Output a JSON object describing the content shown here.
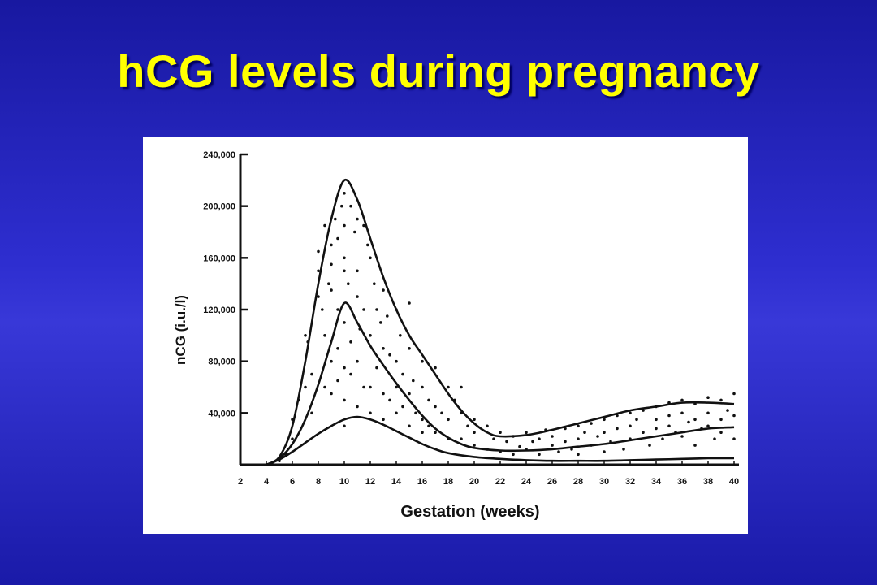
{
  "slide": {
    "title": "hCG levels during pregnancy",
    "colors": {
      "title": "#ffff00",
      "background": "#2a2ac8",
      "plot_background": "#ffffff",
      "ink": "#111111"
    }
  },
  "chart_data": {
    "type": "line",
    "title": "",
    "xlabel": "Gestation (weeks)",
    "ylabel": "nCG (i.u./l)",
    "xlim": [
      2,
      40
    ],
    "ylim": [
      0,
      240000
    ],
    "grid": false,
    "legend": "none",
    "x_ticks": [
      2,
      4,
      6,
      8,
      10,
      12,
      14,
      16,
      18,
      20,
      22,
      24,
      26,
      28,
      30,
      32,
      34,
      36,
      38,
      40
    ],
    "y_ticks": [
      40000,
      80000,
      120000,
      160000,
      200000,
      240000
    ],
    "y_tick_labels": [
      "40,000",
      "80,000",
      "120,000",
      "160,000",
      "200,000",
      "240,000"
    ],
    "series": [
      {
        "x": [
          4,
          5,
          6,
          7,
          8,
          9,
          10,
          11,
          12,
          13,
          14,
          15,
          16,
          17,
          18,
          19,
          20,
          21,
          22,
          24,
          26,
          28,
          30,
          32,
          34,
          36,
          38,
          40
        ],
        "values": [
          0,
          6000,
          30000,
          80000,
          140000,
          190000,
          220000,
          205000,
          175000,
          145000,
          120000,
          100000,
          85000,
          70000,
          55000,
          42000,
          32000,
          25000,
          22000,
          23000,
          27000,
          32000,
          37000,
          42000,
          45000,
          48000,
          48000,
          47000
        ]
      },
      {
        "x": [
          4,
          5,
          6,
          7,
          8,
          9,
          10,
          11,
          12,
          13,
          14,
          15,
          16,
          17,
          18,
          19,
          20,
          22,
          24,
          26,
          28,
          30,
          32,
          34,
          36,
          38,
          40
        ],
        "values": [
          0,
          5000,
          16000,
          35000,
          62000,
          95000,
          125000,
          110000,
          92000,
          77000,
          63000,
          50000,
          38000,
          28000,
          21000,
          16000,
          13000,
          11000,
          11000,
          12000,
          14000,
          16000,
          19000,
          22000,
          25000,
          28000,
          29000
        ]
      },
      {
        "x": [
          4,
          5,
          6,
          7,
          8,
          9,
          10,
          11,
          12,
          13,
          14,
          15,
          16,
          17,
          18,
          20,
          22,
          24,
          26,
          28,
          30,
          32,
          34,
          36,
          38,
          40
        ],
        "values": [
          0,
          4000,
          10000,
          17000,
          24000,
          30000,
          35000,
          37000,
          35000,
          31000,
          26000,
          21000,
          16000,
          12000,
          9000,
          6000,
          4500,
          3500,
          3000,
          3000,
          3000,
          3500,
          4000,
          4500,
          5000,
          5000
        ]
      }
    ],
    "scatter_points": [
      [
        5,
        3000
      ],
      [
        5.5,
        8000
      ],
      [
        6,
        20000
      ],
      [
        6,
        35000
      ],
      [
        6.5,
        50000
      ],
      [
        7,
        60000
      ],
      [
        7,
        100000
      ],
      [
        7.2,
        95000
      ],
      [
        7.5,
        40000
      ],
      [
        7.5,
        70000
      ],
      [
        8,
        130000
      ],
      [
        8,
        150000
      ],
      [
        8,
        165000
      ],
      [
        8.3,
        120000
      ],
      [
        8.5,
        185000
      ],
      [
        8.5,
        100000
      ],
      [
        8.5,
        60000
      ],
      [
        8.8,
        140000
      ],
      [
        9,
        170000
      ],
      [
        9,
        155000
      ],
      [
        9,
        135000
      ],
      [
        9,
        80000
      ],
      [
        9,
        55000
      ],
      [
        9.3,
        190000
      ],
      [
        9.5,
        175000
      ],
      [
        9.5,
        120000
      ],
      [
        9.5,
        90000
      ],
      [
        9.5,
        65000
      ],
      [
        9.8,
        200000
      ],
      [
        10,
        210000
      ],
      [
        10,
        185000
      ],
      [
        10,
        160000
      ],
      [
        10,
        150000
      ],
      [
        10,
        110000
      ],
      [
        10,
        75000
      ],
      [
        10,
        50000
      ],
      [
        10,
        30000
      ],
      [
        10.3,
        140000
      ],
      [
        10.5,
        200000
      ],
      [
        10.5,
        95000
      ],
      [
        10.5,
        70000
      ],
      [
        10.8,
        180000
      ],
      [
        11,
        190000
      ],
      [
        11,
        150000
      ],
      [
        11,
        130000
      ],
      [
        11,
        80000
      ],
      [
        11,
        45000
      ],
      [
        11.2,
        105000
      ],
      [
        11.5,
        185000
      ],
      [
        11.5,
        120000
      ],
      [
        11.5,
        60000
      ],
      [
        11.8,
        170000
      ],
      [
        12,
        160000
      ],
      [
        12,
        100000
      ],
      [
        12,
        60000
      ],
      [
        12,
        40000
      ],
      [
        12.3,
        140000
      ],
      [
        12.5,
        120000
      ],
      [
        12.5,
        75000
      ],
      [
        12.8,
        110000
      ],
      [
        13,
        135000
      ],
      [
        13,
        90000
      ],
      [
        13,
        55000
      ],
      [
        13,
        35000
      ],
      [
        13.3,
        115000
      ],
      [
        13.5,
        85000
      ],
      [
        13.5,
        50000
      ],
      [
        14,
        120000
      ],
      [
        14,
        80000
      ],
      [
        14,
        60000
      ],
      [
        14,
        40000
      ],
      [
        14.3,
        100000
      ],
      [
        14.5,
        70000
      ],
      [
        14.5,
        45000
      ],
      [
        15,
        125000
      ],
      [
        15,
        90000
      ],
      [
        15,
        55000
      ],
      [
        15,
        30000
      ],
      [
        15.3,
        65000
      ],
      [
        15.5,
        40000
      ],
      [
        16,
        80000
      ],
      [
        16,
        60000
      ],
      [
        16,
        35000
      ],
      [
        16,
        25000
      ],
      [
        16.5,
        50000
      ],
      [
        16.5,
        30000
      ],
      [
        17,
        75000
      ],
      [
        17,
        45000
      ],
      [
        17,
        25000
      ],
      [
        17.5,
        40000
      ],
      [
        18,
        60000
      ],
      [
        18,
        35000
      ],
      [
        18,
        20000
      ],
      [
        18.5,
        50000
      ],
      [
        19,
        40000
      ],
      [
        19,
        20000
      ],
      [
        19,
        60000
      ],
      [
        19.5,
        30000
      ],
      [
        20,
        35000
      ],
      [
        20,
        15000
      ],
      [
        20,
        25000
      ],
      [
        21,
        30000
      ],
      [
        21,
        12000
      ],
      [
        21.5,
        20000
      ],
      [
        22,
        25000
      ],
      [
        22,
        10000
      ],
      [
        22.5,
        18000
      ],
      [
        23,
        22000
      ],
      [
        23,
        8000
      ],
      [
        23.5,
        14000
      ],
      [
        24,
        25000
      ],
      [
        24,
        12000
      ],
      [
        24.5,
        18000
      ],
      [
        25,
        20000
      ],
      [
        25,
        8000
      ],
      [
        25.5,
        27000
      ],
      [
        26,
        22000
      ],
      [
        26,
        15000
      ],
      [
        26.5,
        10000
      ],
      [
        27,
        28000
      ],
      [
        27,
        18000
      ],
      [
        27.5,
        12000
      ],
      [
        28,
        30000
      ],
      [
        28,
        20000
      ],
      [
        28,
        8000
      ],
      [
        28.5,
        25000
      ],
      [
        29,
        32000
      ],
      [
        29,
        15000
      ],
      [
        29.5,
        22000
      ],
      [
        30,
        35000
      ],
      [
        30,
        25000
      ],
      [
        30,
        10000
      ],
      [
        30.5,
        18000
      ],
      [
        31,
        38000
      ],
      [
        31,
        28000
      ],
      [
        31.5,
        12000
      ],
      [
        32,
        40000
      ],
      [
        32,
        30000
      ],
      [
        32,
        20000
      ],
      [
        32.5,
        35000
      ],
      [
        33,
        42000
      ],
      [
        33,
        25000
      ],
      [
        33.5,
        15000
      ],
      [
        34,
        45000
      ],
      [
        34,
        35000
      ],
      [
        34,
        28000
      ],
      [
        34.5,
        20000
      ],
      [
        35,
        48000
      ],
      [
        35,
        38000
      ],
      [
        35,
        30000
      ],
      [
        35.5,
        25000
      ],
      [
        36,
        50000
      ],
      [
        36,
        40000
      ],
      [
        36,
        22000
      ],
      [
        36.5,
        33000
      ],
      [
        37,
        47000
      ],
      [
        37,
        35000
      ],
      [
        37,
        15000
      ],
      [
        37.5,
        28000
      ],
      [
        38,
        52000
      ],
      [
        38,
        40000
      ],
      [
        38,
        30000
      ],
      [
        38.5,
        20000
      ],
      [
        39,
        50000
      ],
      [
        39,
        35000
      ],
      [
        39,
        25000
      ],
      [
        39.5,
        42000
      ],
      [
        40,
        55000
      ],
      [
        40,
        38000
      ],
      [
        40,
        20000
      ]
    ]
  }
}
